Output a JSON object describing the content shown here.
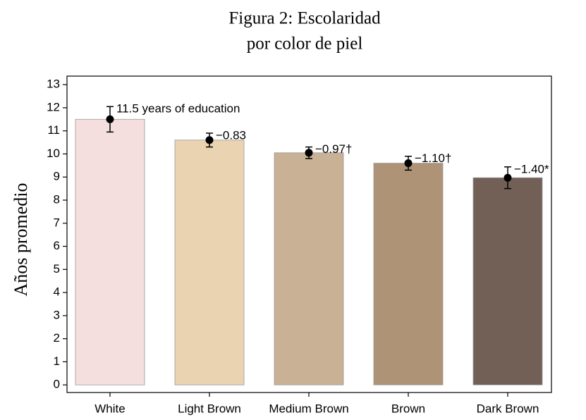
{
  "chart_data": {
    "type": "bar",
    "title": "Figura 2: Escolaridad",
    "subtitle": "por color de piel",
    "y_label": "Años promedio",
    "categories": [
      "White",
      "Light Brown",
      "Medium Brown",
      "Brown",
      "Dark Brown"
    ],
    "values": [
      11.5,
      10.6,
      10.05,
      9.6,
      8.97
    ],
    "errors": [
      0.55,
      0.3,
      0.25,
      0.3,
      0.47
    ],
    "annotations": [
      "11.5 years of education",
      "−0.83",
      "−0.97†",
      "−1.10†",
      "−1.40*"
    ],
    "colors": [
      "#f4dfde",
      "#ead3b1",
      "#c9b195",
      "#ae9376",
      "#725f55"
    ],
    "ylim": [
      -0.33,
      13.37
    ],
    "yticks": [
      0,
      1,
      2,
      3,
      4,
      5,
      6,
      7,
      8,
      9,
      10,
      11,
      12,
      13
    ]
  }
}
